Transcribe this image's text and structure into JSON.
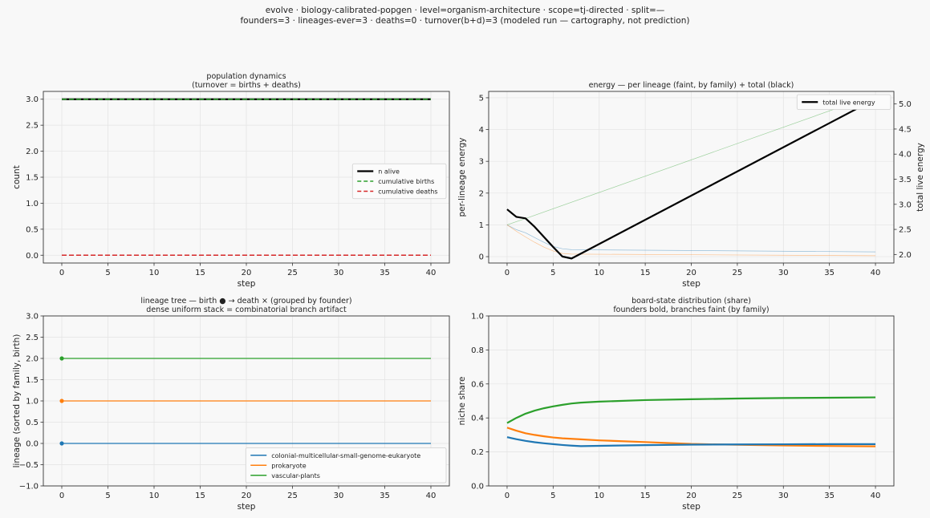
{
  "figure": {
    "suptitle_line1": "evolve · biology-calibrated-popgen · level=organism-architecture · scope=tj-directed · split=—",
    "suptitle_line2": "founders=3 · lineages-ever=3 · deaths=0 · turnover(b+d)=3   (modeled run — cartography, not prediction)",
    "background": "#f8f8f8"
  },
  "colors": {
    "blue": "#1f77b4",
    "orange": "#ff7f0e",
    "green": "#2ca02c",
    "red": "#d62728",
    "black": "#000000"
  },
  "chart_data": [
    {
      "type": "line",
      "title": "population dynamics",
      "subtitle": "(turnover = births + deaths)",
      "xlabel": "step",
      "ylabel": "count",
      "xlim": [
        -2,
        42
      ],
      "ylim": [
        -0.15,
        3.15
      ],
      "xticks": [
        0,
        5,
        10,
        15,
        20,
        25,
        30,
        35,
        40
      ],
      "yticks": [
        0.0,
        0.5,
        1.0,
        1.5,
        2.0,
        2.5,
        3.0
      ],
      "ytick_labels": [
        "0.0",
        "0.5",
        "1.0",
        "1.5",
        "2.0",
        "2.5",
        "3.0"
      ],
      "grid": true,
      "legend_position": "center-right",
      "series": [
        {
          "name": "n alive",
          "color": "#000000",
          "style": "solid",
          "width": 2.2,
          "x": [
            0,
            40
          ],
          "y": [
            3,
            3
          ]
        },
        {
          "name": "cumulative births",
          "color": "#2ca02c",
          "style": "dashed",
          "width": 1.5,
          "x": [
            0,
            40
          ],
          "y": [
            3,
            3
          ]
        },
        {
          "name": "cumulative deaths",
          "color": "#d62728",
          "style": "dashed",
          "width": 1.5,
          "x": [
            0,
            40
          ],
          "y": [
            0,
            0
          ]
        }
      ]
    },
    {
      "type": "line",
      "title": "energy — per lineage (faint, by family) + total (black)",
      "subtitle": "",
      "xlabel": "step",
      "ylabel": "per-lineage energy",
      "ylabel_right": "total live energy",
      "xlim": [
        -2,
        42
      ],
      "ylim": [
        -0.2,
        5.2
      ],
      "ylim_right": [
        1.83,
        5.25
      ],
      "xticks": [
        0,
        5,
        10,
        15,
        20,
        25,
        30,
        35,
        40
      ],
      "yticks": [
        0,
        1,
        2,
        3,
        4,
        5
      ],
      "ytick_labels": [
        "0",
        "1",
        "2",
        "3",
        "4",
        "5"
      ],
      "yticks_right": [
        2.0,
        2.5,
        3.0,
        3.5,
        4.0,
        4.5,
        5.0
      ],
      "ytick_labels_right": [
        "2.0",
        "2.5",
        "3.0",
        "3.5",
        "4.0",
        "4.5",
        "5.0"
      ],
      "grid": true,
      "legend_position": "top-right",
      "series": [
        {
          "name": "",
          "color": "#2ca02c",
          "style": "solid",
          "width": 0.7,
          "opacity": 0.45,
          "axis": "left",
          "x": [
            0,
            1,
            2,
            40
          ],
          "y": [
            1.0,
            1.1,
            1.2,
            5.1
          ]
        },
        {
          "name": "",
          "color": "#1f77b4",
          "style": "solid",
          "width": 0.7,
          "opacity": 0.45,
          "axis": "left",
          "x": [
            0,
            1,
            2,
            3,
            4,
            5,
            6,
            7,
            40
          ],
          "y": [
            1.0,
            0.85,
            0.75,
            0.6,
            0.45,
            0.32,
            0.25,
            0.22,
            0.15
          ]
        },
        {
          "name": "",
          "color": "#ff7f0e",
          "style": "solid",
          "width": 0.7,
          "opacity": 0.45,
          "axis": "left",
          "x": [
            0,
            1,
            2,
            3,
            4,
            5,
            6,
            7,
            40
          ],
          "y": [
            1.0,
            0.8,
            0.62,
            0.45,
            0.3,
            0.18,
            0.1,
            0.08,
            0.03
          ]
        },
        {
          "name": "total live energy",
          "color": "#000000",
          "style": "solid",
          "width": 2.2,
          "opacity": 1,
          "axis": "right",
          "x": [
            0,
            1,
            2,
            3,
            4,
            5,
            6,
            7,
            40
          ],
          "y": [
            2.9,
            2.75,
            2.72,
            2.55,
            2.35,
            2.15,
            1.96,
            1.92,
            5.1
          ]
        }
      ]
    },
    {
      "type": "line",
      "title": "lineage tree — birth ● → death ×  (grouped by founder)",
      "subtitle": "dense uniform stack = combinatorial branch artifact",
      "xlabel": "step",
      "ylabel": "lineage (sorted by family, birth)",
      "xlim": [
        -2,
        42
      ],
      "ylim": [
        -1.0,
        3.0
      ],
      "xticks": [
        0,
        5,
        10,
        15,
        20,
        25,
        30,
        35,
        40
      ],
      "yticks": [
        -1.0,
        -0.5,
        0.0,
        0.5,
        1.0,
        1.5,
        2.0,
        2.5,
        3.0
      ],
      "ytick_labels": [
        "−1.0",
        "−0.5",
        "0.0",
        "0.5",
        "1.0",
        "1.5",
        "2.0",
        "2.5",
        "3.0"
      ],
      "grid": true,
      "legend_position": "bottom-right",
      "series": [
        {
          "name": "colonial-multicellular-small-genome-eukaryote",
          "color": "#1f77b4",
          "style": "solid",
          "width": 1.3,
          "x": [
            0,
            40
          ],
          "y": [
            0,
            0
          ],
          "birth_marker": true
        },
        {
          "name": "prokaryote",
          "color": "#ff7f0e",
          "style": "solid",
          "width": 1.3,
          "x": [
            0,
            40
          ],
          "y": [
            1,
            1
          ],
          "birth_marker": true
        },
        {
          "name": "vascular-plants",
          "color": "#2ca02c",
          "style": "solid",
          "width": 1.3,
          "x": [
            0,
            40
          ],
          "y": [
            2,
            2
          ],
          "birth_marker": true
        }
      ]
    },
    {
      "type": "line",
      "title": "board-state distribution (share)",
      "subtitle": "founders bold, branches faint (by family)",
      "xlabel": "step",
      "ylabel": "niche share",
      "xlim": [
        -2,
        42
      ],
      "ylim": [
        0.0,
        1.0
      ],
      "xticks": [
        0,
        5,
        10,
        15,
        20,
        25,
        30,
        35,
        40
      ],
      "yticks": [
        0.0,
        0.2,
        0.4,
        0.6,
        0.8,
        1.0
      ],
      "ytick_labels": [
        "0.0",
        "0.2",
        "0.4",
        "0.6",
        "0.8",
        "1.0"
      ],
      "grid": true,
      "legend_position": "none",
      "series": [
        {
          "name": "",
          "color": "#2ca02c",
          "style": "solid",
          "width": 2.2,
          "x": [
            0,
            1,
            2,
            3,
            4,
            5,
            6,
            7,
            8,
            10,
            15,
            20,
            25,
            30,
            35,
            40
          ],
          "y": [
            0.37,
            0.4,
            0.425,
            0.443,
            0.457,
            0.468,
            0.477,
            0.485,
            0.49,
            0.496,
            0.505,
            0.51,
            0.514,
            0.517,
            0.519,
            0.521
          ]
        },
        {
          "name": "",
          "color": "#ff7f0e",
          "style": "solid",
          "width": 2.2,
          "x": [
            0,
            1,
            2,
            3,
            4,
            5,
            6,
            7,
            8,
            10,
            15,
            20,
            25,
            30,
            35,
            40
          ],
          "y": [
            0.343,
            0.325,
            0.31,
            0.3,
            0.292,
            0.285,
            0.28,
            0.277,
            0.274,
            0.268,
            0.258,
            0.247,
            0.242,
            0.238,
            0.235,
            0.233
          ]
        },
        {
          "name": "",
          "color": "#1f77b4",
          "style": "solid",
          "width": 2.2,
          "x": [
            0,
            1,
            2,
            3,
            4,
            5,
            6,
            7,
            8,
            10,
            15,
            20,
            25,
            30,
            35,
            40
          ],
          "y": [
            0.287,
            0.275,
            0.265,
            0.257,
            0.251,
            0.246,
            0.241,
            0.237,
            0.234,
            0.236,
            0.24,
            0.243,
            0.244,
            0.245,
            0.246,
            0.246
          ]
        }
      ]
    }
  ]
}
